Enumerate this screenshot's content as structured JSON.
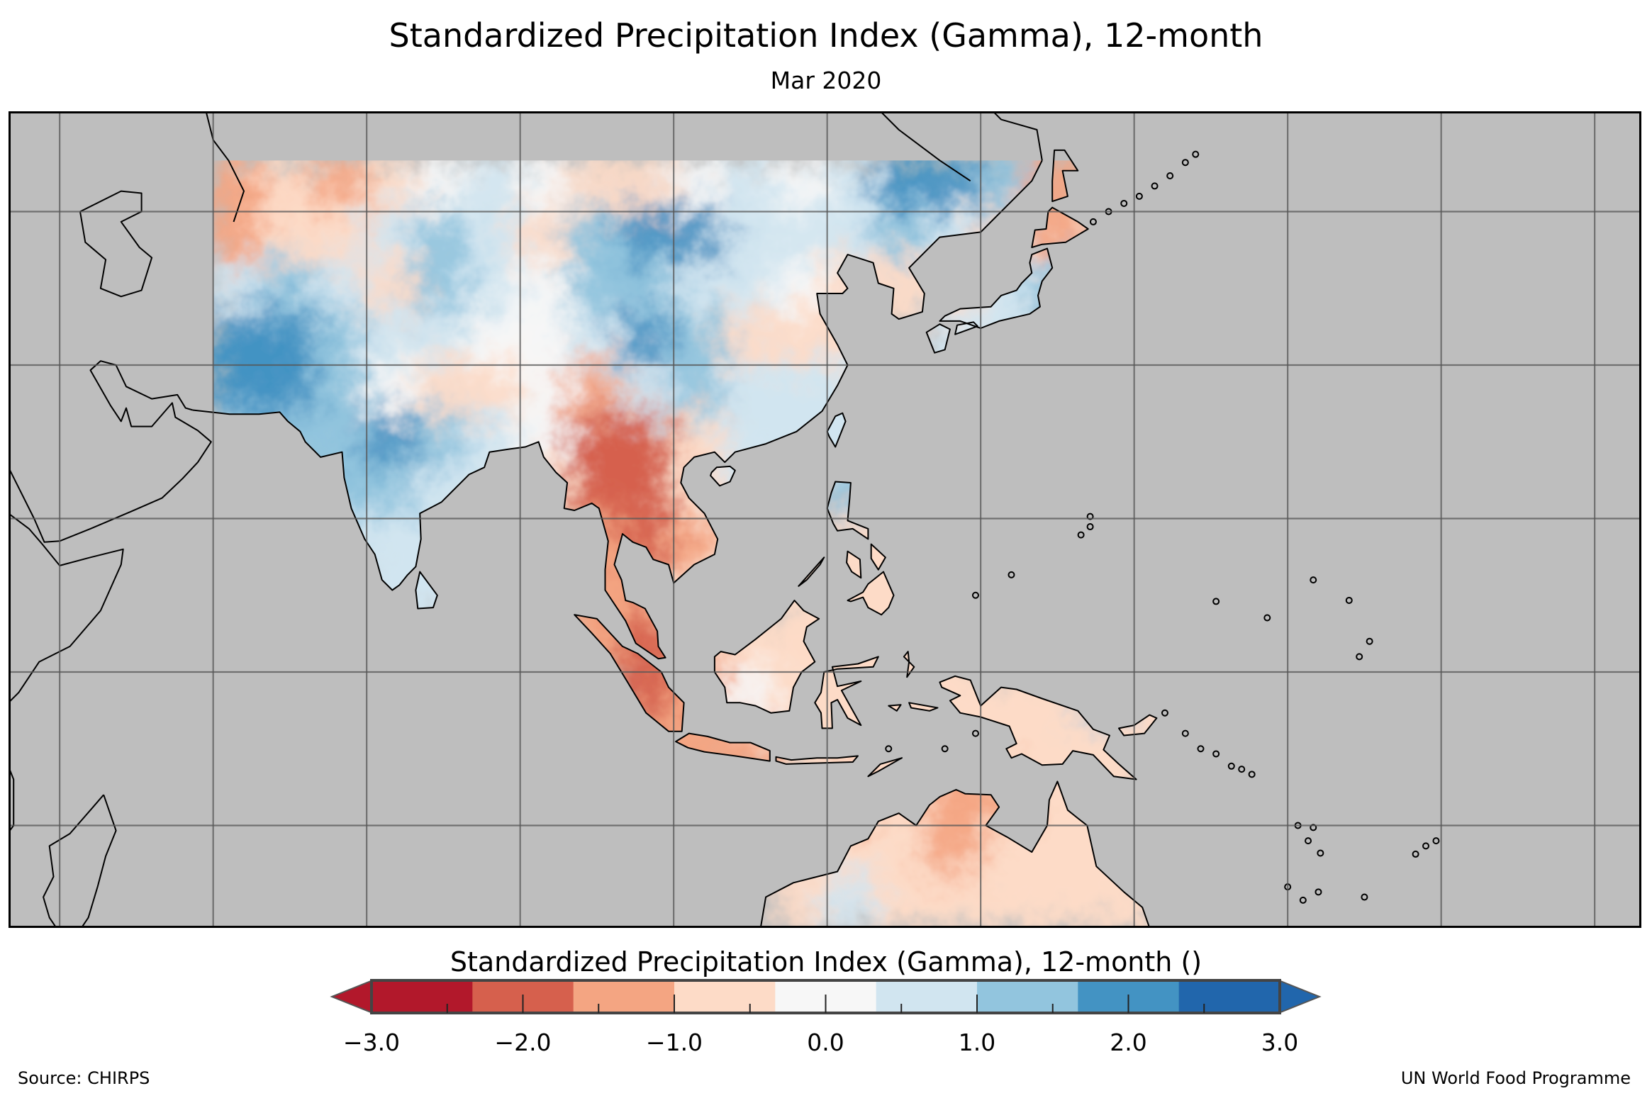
{
  "title": "Standardized Precipitation Index (Gamma), 12-month",
  "subtitle": "Mar 2020",
  "footer": {
    "source": "Source: CHIRPS",
    "credit": "UN World Food Programme"
  },
  "chart_data": {
    "type": "heatmap",
    "title": "Standardized Precipitation Index (Gamma), 12-month",
    "subtitle": "Mar 2020",
    "map_extent": {
      "lon": [
        40,
        200
      ],
      "lat": [
        -25,
        55
      ]
    },
    "graticule_step_deg": 15,
    "data_domain": {
      "lon_min": 60,
      "lat_max": 50
    },
    "grid": {
      "lon_start": 60,
      "lat_start": 50,
      "cell_deg": 5,
      "values": [
        [
          -1.5,
          -1,
          -1.5,
          -0.5,
          0.3,
          0.5,
          0,
          -1,
          -0.5,
          0.3,
          0.5,
          0.3,
          0.5,
          2.0,
          2.2,
          1.5,
          -1.5,
          null,
          null
        ],
        [
          -1.5,
          -1,
          -1,
          0.5,
          1.5,
          0.5,
          -0.8,
          1,
          2.2,
          1.8,
          0.5,
          0.8,
          0.5,
          1.5,
          0.5,
          -1,
          -1.2,
          -1,
          null
        ],
        [
          0.5,
          1.5,
          0.5,
          -0.8,
          1.2,
          0.5,
          0.3,
          1.5,
          1.0,
          0.8,
          0.5,
          0.3,
          -0.8,
          -1,
          -0.5,
          0.8,
          1.0,
          null,
          null
        ],
        [
          2.2,
          2.3,
          1.5,
          0.5,
          0.5,
          0.2,
          0.3,
          0.5,
          1.8,
          1.0,
          -0.5,
          -1.0,
          -0.5,
          null,
          0.5,
          0.5,
          null,
          null,
          null
        ],
        [
          2.0,
          2.0,
          1.2,
          0.3,
          -0.5,
          -0.5,
          -0.3,
          -1.5,
          0.5,
          1.0,
          0.8,
          0.5,
          0.5,
          null,
          null,
          null,
          null,
          null,
          null
        ],
        [
          1.5,
          1.0,
          1.2,
          2.0,
          1.0,
          0.5,
          0.3,
          -2.0,
          -2.3,
          -0.5,
          0.5,
          0.5,
          0.8,
          null,
          null,
          null,
          null,
          null,
          null
        ],
        [
          null,
          null,
          1.0,
          1.2,
          0.8,
          0.5,
          -0.5,
          -1.8,
          -2.0,
          -1.0,
          0.5,
          null,
          1.5,
          -0.5,
          null,
          null,
          null,
          null,
          null
        ],
        [
          null,
          null,
          0.8,
          0.8,
          0.5,
          null,
          null,
          -1.5,
          -2.3,
          -1.5,
          -1.0,
          null,
          -0.5,
          -0.5,
          null,
          null,
          null,
          null,
          null
        ],
        [
          null,
          null,
          null,
          0.8,
          0.8,
          null,
          null,
          -1.5,
          -1.5,
          -1.0,
          null,
          -0.8,
          -0.8,
          -1.0,
          null,
          null,
          null,
          null,
          null
        ],
        [
          null,
          null,
          null,
          null,
          null,
          null,
          null,
          -1.5,
          -2.0,
          -1.5,
          -0.8,
          -1.0,
          -0.5,
          -1.0,
          -0.8,
          null,
          null,
          null,
          null
        ],
        [
          null,
          null,
          null,
          null,
          null,
          null,
          null,
          null,
          -2.0,
          -1.5,
          0.3,
          -1.0,
          -1.0,
          -0.5,
          -0.5,
          -1.0,
          -0.5,
          1.0,
          -0.5
        ],
        [
          null,
          null,
          null,
          null,
          null,
          null,
          null,
          null,
          -1.5,
          -1.5,
          -1.2,
          -1.0,
          -1.0,
          -0.8,
          -0.5,
          -0.5,
          -1.0,
          -0.8,
          -0.5
        ],
        [
          null,
          null,
          null,
          null,
          null,
          null,
          null,
          null,
          null,
          null,
          null,
          null,
          -1.5,
          -1.0,
          -1.5,
          -1.5,
          -1.0,
          -1.0,
          null
        ],
        [
          null,
          null,
          null,
          null,
          null,
          null,
          null,
          null,
          null,
          null,
          null,
          -0.5,
          -0.8,
          -1.0,
          -1.2,
          -0.8,
          -0.8,
          -1.0,
          null
        ],
        [
          null,
          null,
          null,
          null,
          null,
          null,
          null,
          null,
          null,
          null,
          null,
          -0.5,
          0.5,
          -0.5,
          -0.5,
          -0.8,
          -0.5,
          -0.8,
          -0.5
        ]
      ]
    },
    "colorbar": {
      "title": "Standardized Precipitation Index (Gamma), 12-month ()",
      "range": [
        -3,
        3
      ],
      "extend": "both",
      "colors": [
        "#b2182b",
        "#d6604d",
        "#f4a582",
        "#fddbc7",
        "#f7f7f7",
        "#d1e5f0",
        "#92c5de",
        "#4393c3",
        "#2166ac"
      ],
      "under_color": "#b2182b",
      "over_color": "#2166ac",
      "ticks": [
        -3,
        -2,
        -1,
        0,
        1,
        2,
        3
      ],
      "minor_ticks": [
        -2.5,
        -1.5,
        -0.5,
        0.5,
        1.5,
        2.5
      ],
      "tick_labels": [
        "−3.0",
        "−2.0",
        "−1.0",
        "0.0",
        "1.0",
        "2.0",
        "3.0"
      ]
    },
    "no_data_color": "#bebebe"
  }
}
